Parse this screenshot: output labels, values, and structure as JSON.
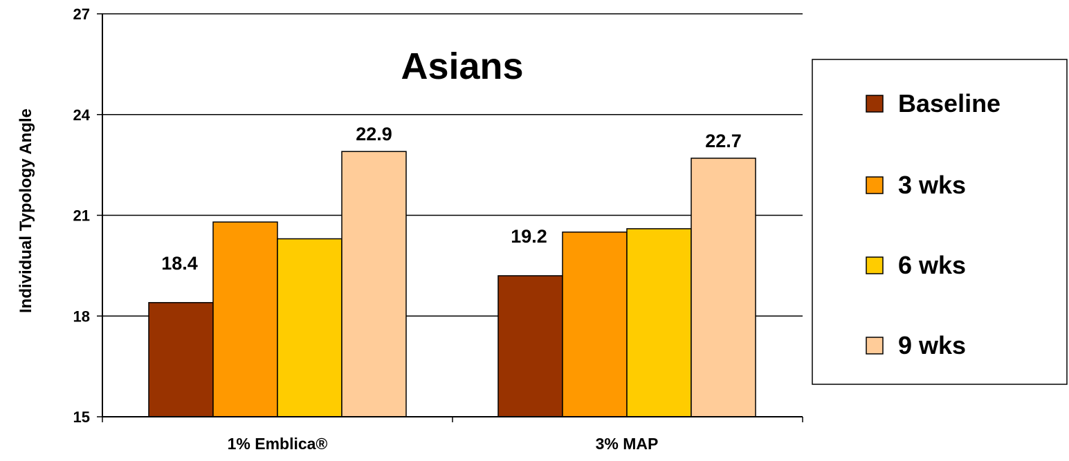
{
  "chart_data": {
    "type": "bar",
    "title": "Asians",
    "ylabel": "Individual Typology Angle",
    "xlabel": "",
    "ylim": [
      15,
      27
    ],
    "yticks": [
      15,
      18,
      21,
      24,
      27
    ],
    "grid": true,
    "legend_position": "right",
    "categories": [
      "1% Emblica®",
      "3% MAP"
    ],
    "series": [
      {
        "name": "Baseline",
        "color": "#993300",
        "values": [
          18.4,
          19.2
        ]
      },
      {
        "name": "3 wks",
        "color": "#FF9900",
        "values": [
          20.8,
          20.5
        ]
      },
      {
        "name": "6 wks",
        "color": "#FFCC00",
        "values": [
          20.3,
          20.6
        ]
      },
      {
        "name": "9 wks",
        "color": "#FFCC99",
        "values": [
          22.9,
          22.7
        ]
      }
    ],
    "data_labels": [
      {
        "series": 0,
        "category": 0,
        "text": "18.4"
      },
      {
        "series": 3,
        "category": 0,
        "text": "22.9"
      },
      {
        "series": 0,
        "category": 1,
        "text": "19.2"
      },
      {
        "series": 3,
        "category": 1,
        "text": "22.7"
      }
    ]
  }
}
